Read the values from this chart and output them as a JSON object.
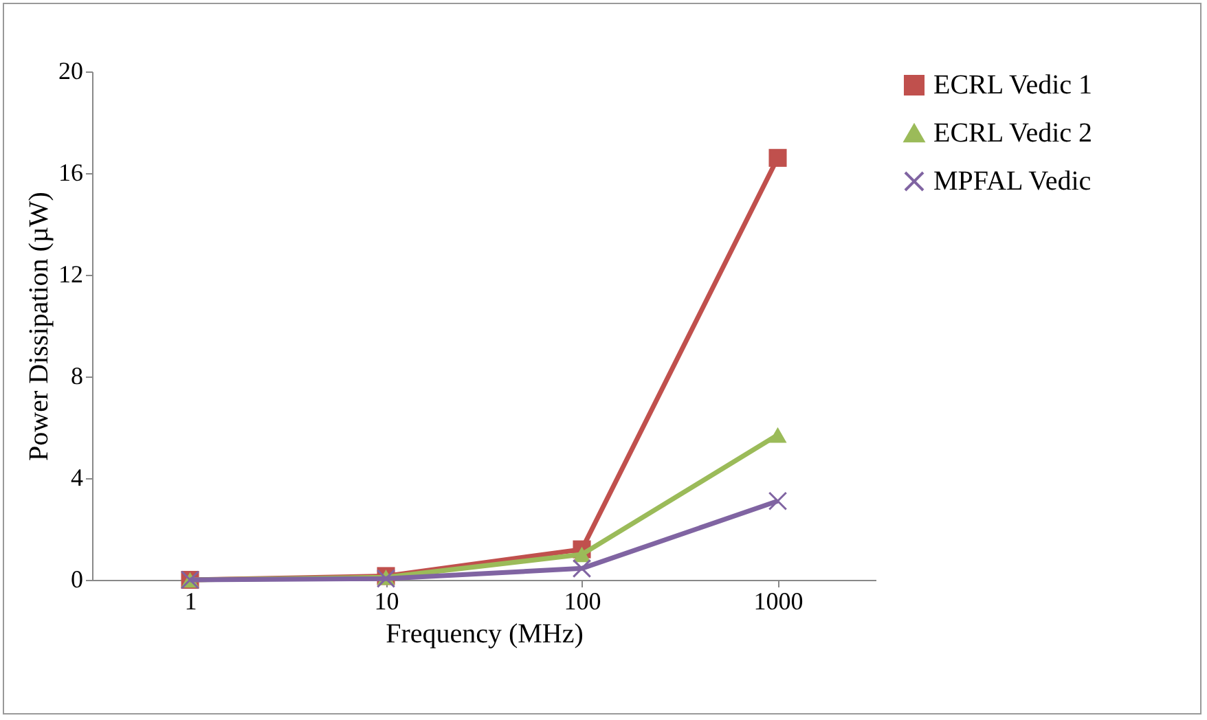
{
  "chart_data": {
    "type": "line",
    "xlabel": "Frequency (MHz)",
    "ylabel": "Power Dissipation (µW)",
    "categories": [
      "1",
      "10",
      "100",
      "1000"
    ],
    "series": [
      {
        "name": "ECRL Vedic 1",
        "color": "#c0504d",
        "marker": "square",
        "values": [
          0,
          0.15,
          1.2,
          16.6
        ]
      },
      {
        "name": "ECRL Vedic 2",
        "color": "#9bbb59",
        "marker": "triangle",
        "values": [
          0,
          0.1,
          1.0,
          5.7
        ]
      },
      {
        "name": "MPFAL Vedic",
        "color": "#8064a2",
        "marker": "cross",
        "values": [
          0,
          0.05,
          0.45,
          3.1
        ]
      }
    ],
    "ylim": [
      0,
      20
    ],
    "yticks": [
      0,
      4,
      8,
      12,
      16,
      20
    ],
    "grid": false,
    "legend": "right"
  }
}
